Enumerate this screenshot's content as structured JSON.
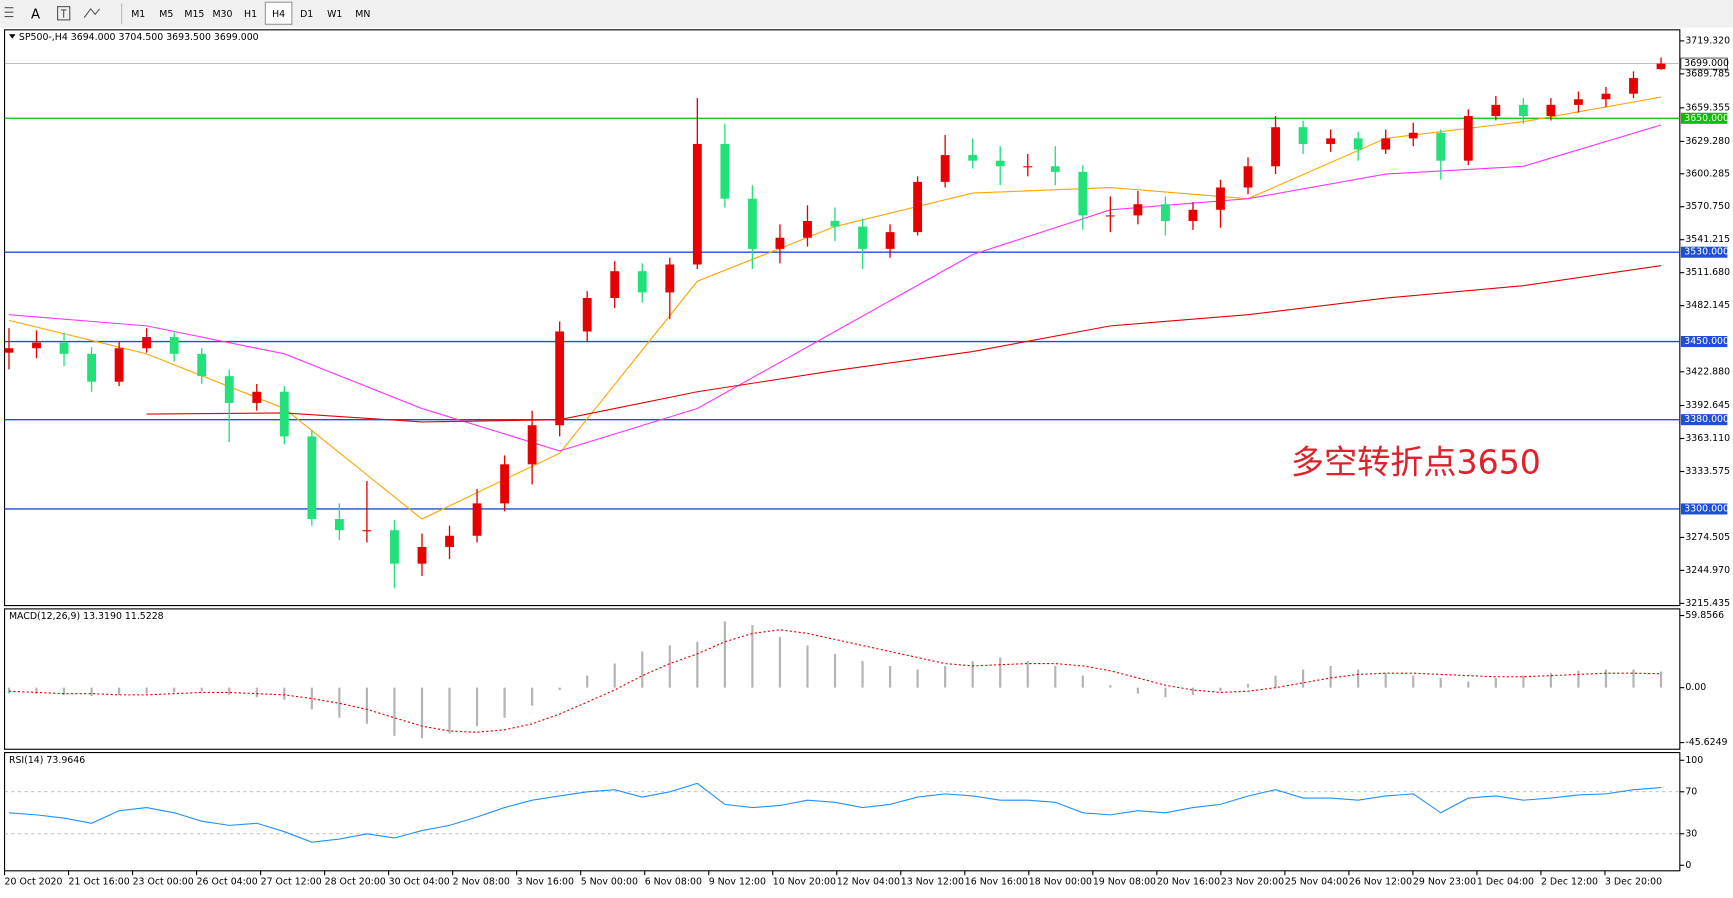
{
  "toolbar": {
    "buttons": [
      "A"
    ],
    "timeframes": [
      "M1",
      "M5",
      "M15",
      "M30",
      "H1",
      "H4",
      "D1",
      "W1",
      "MN"
    ],
    "active_timeframe": "H4"
  },
  "chart_data": [
    {
      "type": "candlestick",
      "title": "SP500-,H4 3694.000 3704.500 3693.500 3699.000",
      "up_color": "#e60000",
      "down_color": "#22e07a",
      "candles": [
        [
          3440,
          3462,
          3425,
          3444
        ],
        [
          3444,
          3460,
          3435,
          3449
        ],
        [
          3449,
          3458,
          3428,
          3439
        ],
        [
          3439,
          3445,
          3405,
          3414
        ],
        [
          3414,
          3450,
          3410,
          3444
        ],
        [
          3444,
          3462,
          3440,
          3454
        ],
        [
          3454,
          3458,
          3432,
          3439
        ],
        [
          3439,
          3444,
          3412,
          3419
        ],
        [
          3419,
          3425,
          3360,
          3395
        ],
        [
          3395,
          3412,
          3388,
          3405
        ],
        [
          3405,
          3410,
          3358,
          3365
        ],
        [
          3365,
          3370,
          3285,
          3291
        ],
        [
          3291,
          3305,
          3272,
          3281
        ],
        [
          3281,
          3325,
          3270,
          3281
        ],
        [
          3281,
          3290,
          3229,
          3251
        ],
        [
          3251,
          3278,
          3240,
          3266
        ],
        [
          3266,
          3285,
          3255,
          3276
        ],
        [
          3276,
          3318,
          3270,
          3305
        ],
        [
          3305,
          3348,
          3298,
          3340
        ],
        [
          3340,
          3388,
          3322,
          3375
        ],
        [
          3375,
          3468,
          3365,
          3459
        ],
        [
          3459,
          3495,
          3450,
          3489
        ],
        [
          3489,
          3522,
          3480,
          3513
        ],
        [
          3513,
          3520,
          3485,
          3494
        ],
        [
          3494,
          3525,
          3470,
          3519
        ],
        [
          3519,
          3668,
          3515,
          3627
        ],
        [
          3627,
          3645,
          3570,
          3578
        ],
        [
          3578,
          3590,
          3515,
          3533
        ],
        [
          3533,
          3555,
          3520,
          3543
        ],
        [
          3543,
          3572,
          3535,
          3558
        ],
        [
          3558,
          3570,
          3540,
          3553
        ],
        [
          3553,
          3560,
          3515,
          3533
        ],
        [
          3533,
          3555,
          3525,
          3548
        ],
        [
          3548,
          3598,
          3545,
          3593
        ],
        [
          3593,
          3635,
          3588,
          3617
        ],
        [
          3617,
          3632,
          3605,
          3612
        ],
        [
          3612,
          3625,
          3590,
          3607
        ],
        [
          3607,
          3618,
          3598,
          3607
        ],
        [
          3607,
          3625,
          3590,
          3602
        ],
        [
          3602,
          3608,
          3550,
          3563
        ],
        [
          3563,
          3580,
          3548,
          3563
        ],
        [
          3563,
          3585,
          3555,
          3573
        ],
        [
          3573,
          3580,
          3545,
          3558
        ],
        [
          3558,
          3575,
          3550,
          3568
        ],
        [
          3568,
          3595,
          3552,
          3588
        ],
        [
          3588,
          3615,
          3582,
          3607
        ],
        [
          3607,
          3652,
          3600,
          3642
        ],
        [
          3642,
          3648,
          3618,
          3627
        ],
        [
          3627,
          3640,
          3620,
          3632
        ],
        [
          3632,
          3638,
          3612,
          3622
        ],
        [
          3622,
          3640,
          3618,
          3632
        ],
        [
          3632,
          3646,
          3625,
          3637
        ],
        [
          3637,
          3640,
          3595,
          3612
        ],
        [
          3612,
          3658,
          3608,
          3652
        ],
        [
          3652,
          3670,
          3648,
          3662
        ],
        [
          3662,
          3668,
          3645,
          3652
        ],
        [
          3652,
          3668,
          3648,
          3662
        ],
        [
          3662,
          3674,
          3655,
          3667
        ],
        [
          3667,
          3678,
          3660,
          3672
        ],
        [
          3672,
          3692,
          3668,
          3686
        ],
        [
          3694,
          3704.5,
          3693.5,
          3699
        ]
      ],
      "ma_x": [
        0,
        5,
        10,
        15,
        20,
        25,
        30,
        35,
        40,
        45,
        50,
        55,
        60
      ],
      "series": [
        {
          "color": "#ffa500",
          "values": [
            3469,
            3439,
            3390,
            3291,
            3350,
            3504,
            3553,
            3583,
            3588,
            3578,
            3632,
            3647,
            3669
          ]
        },
        {
          "color": "#ff33ff",
          "values": [
            3474,
            3464,
            3439,
            3390,
            3352,
            3390,
            3459,
            3528,
            3568,
            3578,
            3600,
            3607,
            3644
          ]
        },
        {
          "color": "#e60000",
          "values": [
            null,
            3385,
            3386,
            3378,
            3380,
            3405,
            3424,
            3441,
            3464,
            3474,
            3489,
            3500,
            3518
          ]
        }
      ],
      "ylim": [
        3215.435,
        3719.32
      ],
      "yticks": [
        {
          "value": 3719.32,
          "label": "3719.320"
        },
        3689.785,
        3659.355,
        {
          "value": 3629.28,
          "label": "3629.280"
        },
        3600.285,
        {
          "value": 3570.75,
          "label": "3570.750"
        },
        3541.215,
        {
          "value": 3511.68,
          "label": "3511.680"
        },
        3482.145,
        {
          "value": 3422.88,
          "label": "3422.880"
        },
        3392.645,
        {
          "value": 3363.11,
          "label": "3363.110"
        },
        3333.575,
        3274.505,
        {
          "value": 3244.97,
          "label": "3244.970"
        },
        3215.435
      ],
      "last_price": {
        "value": 3699,
        "label": "3699.000"
      },
      "levels": [
        {
          "value": 3650,
          "label": "3650.000",
          "color": "#00c000"
        },
        {
          "value": 3530,
          "label": "3530.000",
          "color": "#1f4fd8"
        },
        {
          "value": 3450,
          "label": "3450.000",
          "color": "#1f4fd8"
        },
        {
          "value": 3380,
          "label": "3380.000",
          "color": "#1f4fd8"
        },
        {
          "value": 3300,
          "label": "3300.000",
          "color": "#1f4fd8"
        }
      ],
      "annotation": "多空转折点3650",
      "x_labels": [
        "20 Oct 2020",
        "21 Oct 16:00",
        "23 Oct 00:00",
        "26 Oct 04:00",
        "27 Oct 12:00",
        "28 Oct 20:00",
        "30 Oct 04:00",
        "2 Nov 08:00",
        "3 Nov 16:00",
        "5 Nov 00:00",
        "6 Nov 08:00",
        "9 Nov 12:00",
        "10 Nov 20:00",
        "12 Nov 04:00",
        "13 Nov 12:00",
        "16 Nov 16:00",
        "18 Nov 00:00",
        "19 Nov 08:00",
        "20 Nov 16:00",
        "23 Nov 20:00",
        "25 Nov 04:00",
        "26 Nov 12:00",
        "29 Nov 23:00",
        "1 Dec 04:00",
        "2 Dec 12:00",
        "3 Dec 20:00"
      ]
    },
    {
      "type": "macd",
      "title": "MACD(12,26,9) 13.3190 11.5228",
      "histogram": {
        "color": "#b4b4b4",
        "values": [
          -5,
          -5,
          -6,
          -7,
          -6,
          -5,
          -4,
          -3,
          -6,
          -8,
          -10,
          -18,
          -25,
          -30,
          -40,
          -42,
          -38,
          -32,
          -25,
          -15,
          -2,
          10,
          20,
          30,
          35,
          38,
          55,
          52,
          42,
          35,
          28,
          22,
          18,
          15,
          18,
          22,
          25,
          22,
          18,
          10,
          2,
          -5,
          -8,
          -6,
          -3,
          3,
          10,
          15,
          18,
          15,
          12,
          10,
          8,
          5,
          8,
          10,
          12,
          14,
          15,
          15,
          13.319
        ]
      },
      "signal": {
        "color": "#e60000",
        "values": [
          -3,
          -4,
          -5,
          -5,
          -6,
          -6,
          -5,
          -4,
          -4,
          -5,
          -6,
          -9,
          -13,
          -18,
          -25,
          -32,
          -36,
          -37,
          -35,
          -30,
          -22,
          -12,
          -2,
          10,
          20,
          28,
          38,
          45,
          48,
          45,
          40,
          35,
          30,
          25,
          20,
          18,
          19,
          20,
          20,
          18,
          14,
          8,
          2,
          -2,
          -4,
          -3,
          0,
          4,
          8,
          11,
          12,
          12,
          11,
          10,
          9,
          9,
          10,
          11,
          12,
          12,
          11.5228
        ]
      },
      "ylim": [
        -45.6249,
        59.8566
      ],
      "yticks": [
        59.8566,
        {
          "value": 0,
          "label": "0.00"
        },
        -45.6249
      ]
    },
    {
      "type": "line",
      "title": "RSI(14) 73.9646",
      "color": "#1e90ff",
      "values": [
        50,
        48,
        45,
        40,
        52,
        55,
        50,
        42,
        38,
        40,
        32,
        22,
        25,
        30,
        26,
        33,
        38,
        46,
        55,
        62,
        66,
        70,
        72,
        65,
        70,
        78,
        58,
        55,
        57,
        62,
        60,
        55,
        58,
        65,
        68,
        66,
        62,
        62,
        60,
        50,
        48,
        52,
        50,
        55,
        58,
        66,
        72,
        64,
        64,
        62,
        66,
        68,
        50,
        64,
        66,
        62,
        64,
        67,
        68,
        72,
        73.9646
      ],
      "ylim": [
        0,
        100
      ],
      "yticks": [
        100,
        70,
        30,
        0
      ],
      "levels": [
        70,
        30
      ]
    }
  ]
}
